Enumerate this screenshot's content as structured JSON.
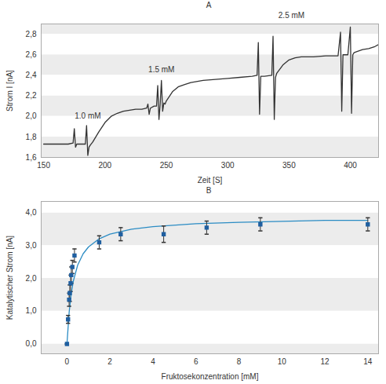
{
  "chart_data": [
    {
      "type": "line",
      "title": "A",
      "x_label": "Zeit [S]",
      "y_label": "Strom I [nA]",
      "color": "#333333",
      "grid": true,
      "xlim": [
        148,
        423
      ],
      "xticks": [
        150,
        200,
        250,
        300,
        350,
        400
      ],
      "ylim": [
        1.6,
        2.9
      ],
      "yticks": [
        {
          "value": 1.6,
          "label": "1,6"
        },
        {
          "value": 1.8,
          "label": "1,8"
        },
        {
          "value": 2.0,
          "label": "2,0"
        },
        {
          "value": 2.2,
          "label": "2,2"
        },
        {
          "value": 2.4,
          "label": "2,4"
        },
        {
          "value": 2.6,
          "label": "2,6"
        },
        {
          "value": 2.8,
          "label": "2,8"
        }
      ],
      "x": [
        150,
        160,
        170,
        174,
        175,
        176,
        177,
        180,
        184,
        185,
        186,
        187,
        188,
        190,
        195,
        200,
        205,
        210,
        215,
        220,
        225,
        230,
        234,
        235,
        236,
        237,
        240,
        242,
        243,
        244,
        245,
        246,
        247,
        248,
        249,
        250,
        255,
        260,
        265,
        270,
        280,
        290,
        300,
        310,
        320,
        324,
        325,
        326,
        327,
        330,
        336,
        337,
        338,
        339,
        340,
        345,
        350,
        355,
        360,
        370,
        380,
        390,
        392,
        393,
        394,
        395,
        398,
        400,
        401,
        402,
        403,
        405,
        410,
        415,
        420,
        423
      ],
      "values": [
        1.73,
        1.73,
        1.73,
        1.74,
        1.88,
        1.7,
        1.73,
        1.73,
        1.73,
        1.91,
        1.62,
        1.7,
        1.72,
        1.75,
        1.85,
        1.94,
        2.0,
        2.03,
        2.05,
        2.06,
        2.07,
        2.07,
        2.08,
        2.12,
        2.02,
        2.08,
        2.1,
        2.1,
        2.3,
        1.97,
        2.12,
        2.35,
        2.05,
        2.13,
        2.12,
        2.15,
        2.24,
        2.29,
        2.31,
        2.33,
        2.35,
        2.36,
        2.37,
        2.38,
        2.39,
        2.4,
        2.72,
        2.02,
        2.39,
        2.39,
        2.4,
        2.78,
        1.97,
        2.38,
        2.42,
        2.5,
        2.55,
        2.57,
        2.58,
        2.58,
        2.59,
        2.59,
        2.82,
        2.05,
        2.6,
        2.6,
        2.6,
        2.87,
        2.03,
        2.6,
        2.62,
        2.63,
        2.65,
        2.66,
        2.68,
        2.7
      ],
      "annotations": [
        {
          "text": "1.0 mM",
          "x": 186,
          "y": 1.98
        },
        {
          "text": "1.5 mM",
          "x": 246,
          "y": 2.43
        },
        {
          "text": "2.5 mM",
          "x": 352,
          "y": 2.96
        }
      ]
    },
    {
      "type": "scatter",
      "title": "B",
      "x_label": "Fruktosekonzentration [mM]",
      "y_label": "Katalytischer Strom [nA]",
      "grid": true,
      "xlim": [
        -1.2,
        14.5
      ],
      "xticks": [
        0,
        2,
        4,
        6,
        8,
        10,
        12,
        14
      ],
      "ylim": [
        -0.3,
        4.35
      ],
      "yticks": [
        {
          "value": 0,
          "label": "0,0"
        },
        {
          "value": 1,
          "label": "1,0"
        },
        {
          "value": 2,
          "label": "2,0"
        },
        {
          "value": 3,
          "label": "3,0"
        },
        {
          "value": 4,
          "label": "4,0"
        }
      ],
      "series": [
        {
          "type": "line",
          "color": "#2b8cc4",
          "x": [
            0,
            0.1,
            0.2,
            0.3,
            0.5,
            0.75,
            1,
            1.5,
            2,
            3,
            4,
            6,
            8,
            10,
            12,
            14
          ],
          "values": [
            0,
            0.96,
            1.54,
            1.93,
            2.41,
            2.75,
            2.96,
            3.21,
            3.35,
            3.5,
            3.58,
            3.67,
            3.71,
            3.74,
            3.77,
            3.77
          ]
        },
        {
          "type": "scatter",
          "marker": "square",
          "color": "#1f5fa0",
          "x": [
            0,
            0.05,
            0.1,
            0.13,
            0.17,
            0.2,
            0.25,
            0.35,
            1.5,
            2.5,
            4.5,
            6.5,
            9,
            14
          ],
          "values": [
            0,
            0.75,
            1.35,
            1.55,
            1.85,
            2.1,
            2.35,
            2.7,
            3.1,
            3.35,
            3.35,
            3.55,
            3.65,
            3.65
          ],
          "errors": [
            0,
            0.12,
            0.2,
            0.25,
            0.25,
            0.25,
            0.2,
            0.2,
            0.2,
            0.2,
            0.25,
            0.2,
            0.2,
            0.2
          ]
        }
      ]
    }
  ]
}
